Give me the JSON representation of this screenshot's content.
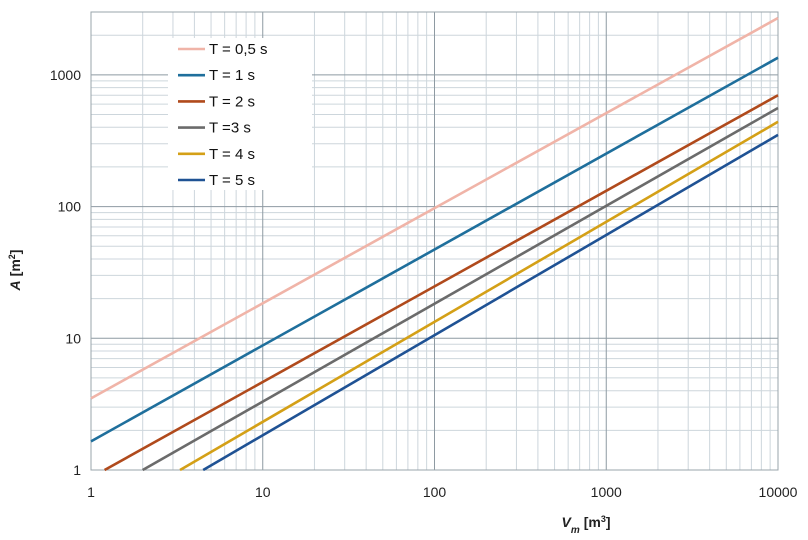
{
  "chart_data": {
    "type": "line",
    "title": "",
    "xscale": "log",
    "yscale": "log",
    "xlim": [
      1,
      10000
    ],
    "ylim": [
      1,
      3000
    ],
    "xticks": [
      "1",
      "10",
      "100",
      "1000",
      "10000"
    ],
    "yticks": [
      "1",
      "10",
      "100",
      "1000"
    ],
    "xlabel": {
      "var": "V",
      "sub": "m",
      "unit": "[m",
      "sup": "3",
      "close": "]"
    },
    "ylabel": {
      "var": "A",
      "unit": "[m",
      "sup": "2",
      "close": "]"
    },
    "legend_position": "top-left",
    "grid": true,
    "series": [
      {
        "name": "T = 0,5 s",
        "color": "#f0b4a8",
        "x": [
          1,
          10000
        ],
        "y": [
          3.5,
          2700
        ]
      },
      {
        "name": "T = 1 s",
        "color": "#1f6f9c",
        "x": [
          1,
          10000
        ],
        "y": [
          1.65,
          1350
        ]
      },
      {
        "name": "T = 2 s",
        "color": "#b04a1c",
        "x": [
          1.2,
          10000
        ],
        "y": [
          1,
          700
        ]
      },
      {
        "name": "T =3 s",
        "color": "#6b6b6b",
        "x": [
          2,
          10000
        ],
        "y": [
          1,
          560
        ]
      },
      {
        "name": "T = 4 s",
        "color": "#d4a017",
        "x": [
          3.3,
          10000
        ],
        "y": [
          1,
          440
        ]
      },
      {
        "name": "T = 5 s",
        "color": "#1f5294",
        "x": [
          4.5,
          10000
        ],
        "y": [
          1,
          350
        ]
      }
    ]
  }
}
